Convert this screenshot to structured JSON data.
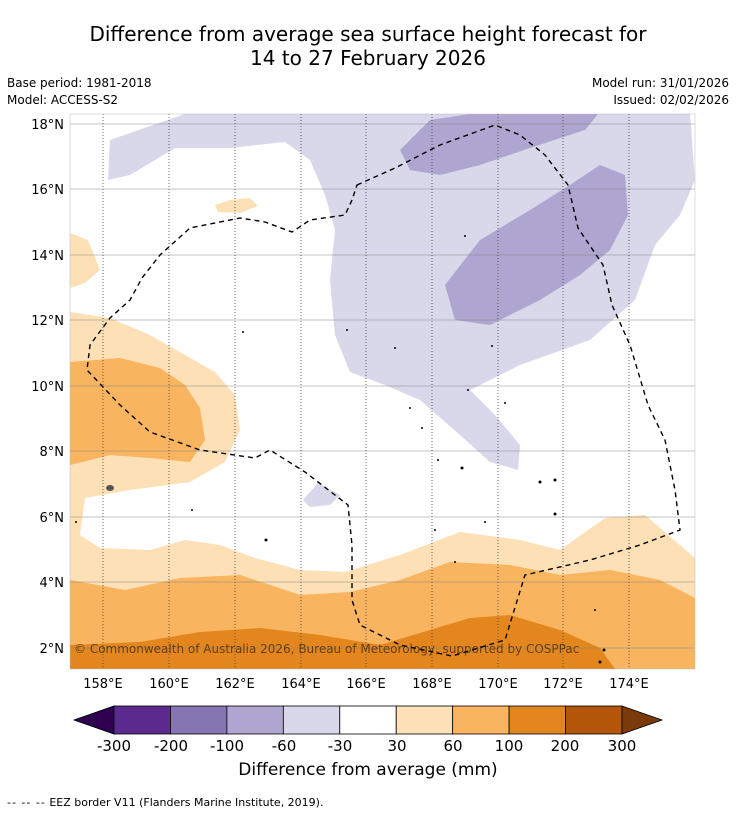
{
  "title": {
    "line1": "Difference from average sea surface height forecast for",
    "line2": "14 to 27 February 2026"
  },
  "meta": {
    "base_period": "Base period: 1981-2018",
    "model": "Model: ACCESS-S2",
    "model_run": "Model run: 31/01/2026",
    "issued": "Issued: 02/02/2026"
  },
  "map": {
    "lat_labels": [
      "18°N",
      "16°N",
      "14°N",
      "12°N",
      "10°N",
      "8°N",
      "6°N",
      "4°N",
      "2°N"
    ],
    "lon_labels": [
      "158°E",
      "160°E",
      "162°E",
      "164°E",
      "166°E",
      "168°E",
      "170°E",
      "172°E",
      "174°E"
    ],
    "lat_values": [
      18,
      16,
      14,
      12,
      10,
      8,
      6,
      4,
      2
    ],
    "lon_values": [
      158,
      160,
      162,
      164,
      166,
      168,
      170,
      172,
      174
    ],
    "copyright": "© Commonwealth of Australia 2026, Bureau of Meteorology, supported by COSPPac"
  },
  "colorbar": {
    "colors": [
      "#2d0050",
      "#5c2a8e",
      "#8575b0",
      "#aea6d0",
      "#d8d8ea",
      "#ffffff",
      "#fde0b5",
      "#f9b45f",
      "#e3861e",
      "#b45609",
      "#7a3a0a"
    ],
    "tick_labels": [
      "-300",
      "-200",
      "-100",
      "-60",
      "-30",
      "30",
      "60",
      "100",
      "200",
      "300"
    ],
    "title": "Difference from average (mm)"
  },
  "legend": {
    "eez_symbol": "-- -- --",
    "eez_text": "EEZ border V11 (Flanders Marine Institute, 2019)."
  }
}
